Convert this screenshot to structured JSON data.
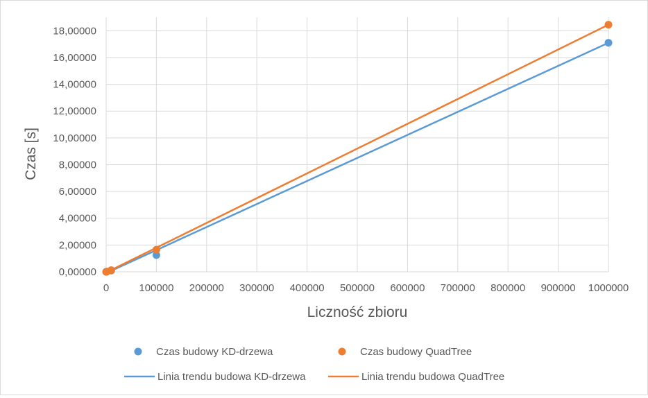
{
  "chart_data": {
    "type": "scatter",
    "xlabel": "Liczność zbioru",
    "ylabel": "Czas [s]",
    "xlim": [
      0,
      1000000
    ],
    "ylim": [
      0,
      19
    ],
    "x_ticks": [
      0,
      100000,
      200000,
      300000,
      400000,
      500000,
      600000,
      700000,
      800000,
      900000,
      1000000
    ],
    "x_tick_labels": [
      "0",
      "100000",
      "200000",
      "300000",
      "400000",
      "500000",
      "600000",
      "700000",
      "800000",
      "900000",
      "1000000"
    ],
    "y_ticks": [
      0,
      2,
      4,
      6,
      8,
      10,
      12,
      14,
      16,
      18
    ],
    "y_tick_labels": [
      "0,00000",
      "2,00000",
      "4,00000",
      "6,00000",
      "8,00000",
      "10,00000",
      "12,00000",
      "14,00000",
      "16,00000",
      "18,00000"
    ],
    "grid": true,
    "legend_position": "bottom",
    "series": [
      {
        "name": "Czas budowy KD-drzewa",
        "kind": "points",
        "color": "#5B9BD5",
        "points": [
          [
            0,
            0.0
          ],
          [
            1000,
            0.01
          ],
          [
            10000,
            0.09
          ],
          [
            100000,
            1.25
          ],
          [
            1000000,
            17.1
          ]
        ]
      },
      {
        "name": "Czas budowy QuadTree",
        "kind": "points",
        "color": "#ED7D31",
        "points": [
          [
            0,
            0.0
          ],
          [
            1000,
            0.01
          ],
          [
            10000,
            0.12
          ],
          [
            100000,
            1.65
          ],
          [
            1000000,
            18.45
          ]
        ]
      },
      {
        "name": "Linia trendu budowa KD-drzewa",
        "kind": "trendline",
        "color": "#5B9BD5",
        "points": [
          [
            0,
            -0.1
          ],
          [
            1000000,
            17.1
          ]
        ]
      },
      {
        "name": "Linia trendu budowa QuadTree",
        "kind": "trendline",
        "color": "#ED7D31",
        "points": [
          [
            0,
            -0.05
          ],
          [
            1000000,
            18.45
          ]
        ]
      }
    ]
  }
}
